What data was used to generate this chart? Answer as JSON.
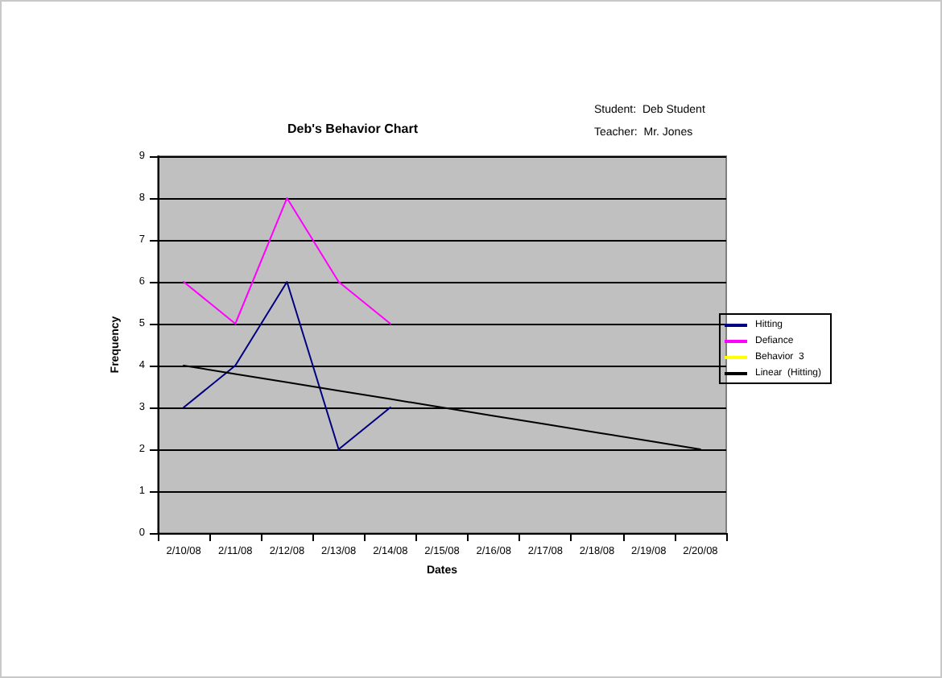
{
  "chart_data": {
    "type": "line",
    "title": "Deb's Behavior Chart",
    "xlabel": "Dates",
    "ylabel": "Frequency",
    "annotations": [
      "Student:  Deb Student",
      "Teacher:  Mr. Jones"
    ],
    "categories": [
      "2/10/08",
      "2/11/08",
      "2/12/08",
      "2/13/08",
      "2/14/08",
      "2/15/08",
      "2/16/08",
      "2/17/08",
      "2/18/08",
      "2/19/08",
      "2/20/08"
    ],
    "series": [
      {
        "name": "Hitting",
        "color": "#000080",
        "values": [
          3,
          4,
          6,
          2,
          3,
          null,
          null,
          null,
          null,
          null,
          null
        ]
      },
      {
        "name": "Defiance",
        "color": "#ff00ff",
        "values": [
          6,
          5,
          8,
          6,
          5,
          null,
          null,
          null,
          null,
          null,
          null
        ]
      },
      {
        "name": "Behavior  3",
        "color": "#ffff00",
        "values": [
          null,
          null,
          null,
          null,
          null,
          null,
          null,
          null,
          null,
          null,
          null
        ]
      },
      {
        "name": "Linear  (Hitting)",
        "color": "#000000",
        "values": [
          4,
          3.8,
          3.6,
          3.4,
          3.2,
          3.0,
          2.8,
          2.6,
          2.4,
          2.2,
          2.0
        ]
      }
    ],
    "ylim": [
      0,
      9
    ],
    "yticks": [
      0,
      1,
      2,
      3,
      4,
      5,
      6,
      7,
      8,
      9
    ],
    "grid": "y",
    "legend": "right",
    "marker": "none",
    "line_style": "solid"
  }
}
